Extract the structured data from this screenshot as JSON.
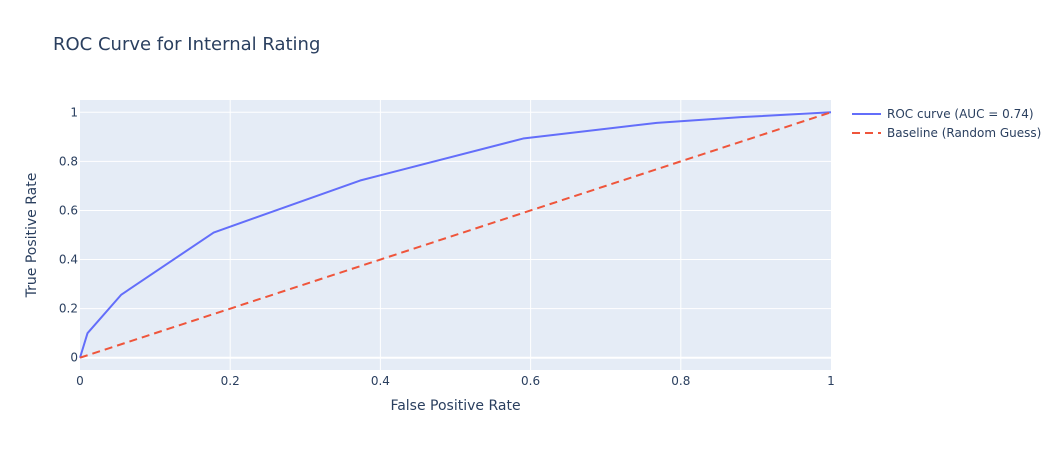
{
  "chart_data": {
    "type": "line",
    "title": "ROC Curve for Internal Rating",
    "xlabel": "False Positive Rate",
    "ylabel": "True Positive Rate",
    "xlim": [
      0,
      1
    ],
    "ylim": [
      -0.05,
      1.05
    ],
    "xticks": [
      0,
      0.2,
      0.4,
      0.6,
      0.8,
      1
    ],
    "xtick_labels": [
      "0",
      "0.2",
      "0.4",
      "0.6",
      "0.8",
      "1"
    ],
    "yticks": [
      0,
      0.2,
      0.4,
      0.6,
      0.8,
      1
    ],
    "ytick_labels": [
      "0",
      "0.2",
      "0.4",
      "0.6",
      "0.8",
      "1"
    ],
    "grid": true,
    "legend_position": "top-right outside",
    "series": [
      {
        "name": "ROC curve (AUC = 0.74)",
        "color": "#636efa",
        "dash": "solid",
        "x": [
          0,
          0.01,
          0.055,
          0.178,
          0.373,
          0.59,
          0.768,
          0.88,
          1
        ],
        "y": [
          0,
          0.1,
          0.257,
          0.51,
          0.722,
          0.893,
          0.957,
          0.98,
          1
        ]
      },
      {
        "name": "Baseline (Random Guess)",
        "color": "#ef553b",
        "dash": "dashed",
        "x": [
          0,
          1
        ],
        "y": [
          0,
          1
        ]
      }
    ]
  }
}
